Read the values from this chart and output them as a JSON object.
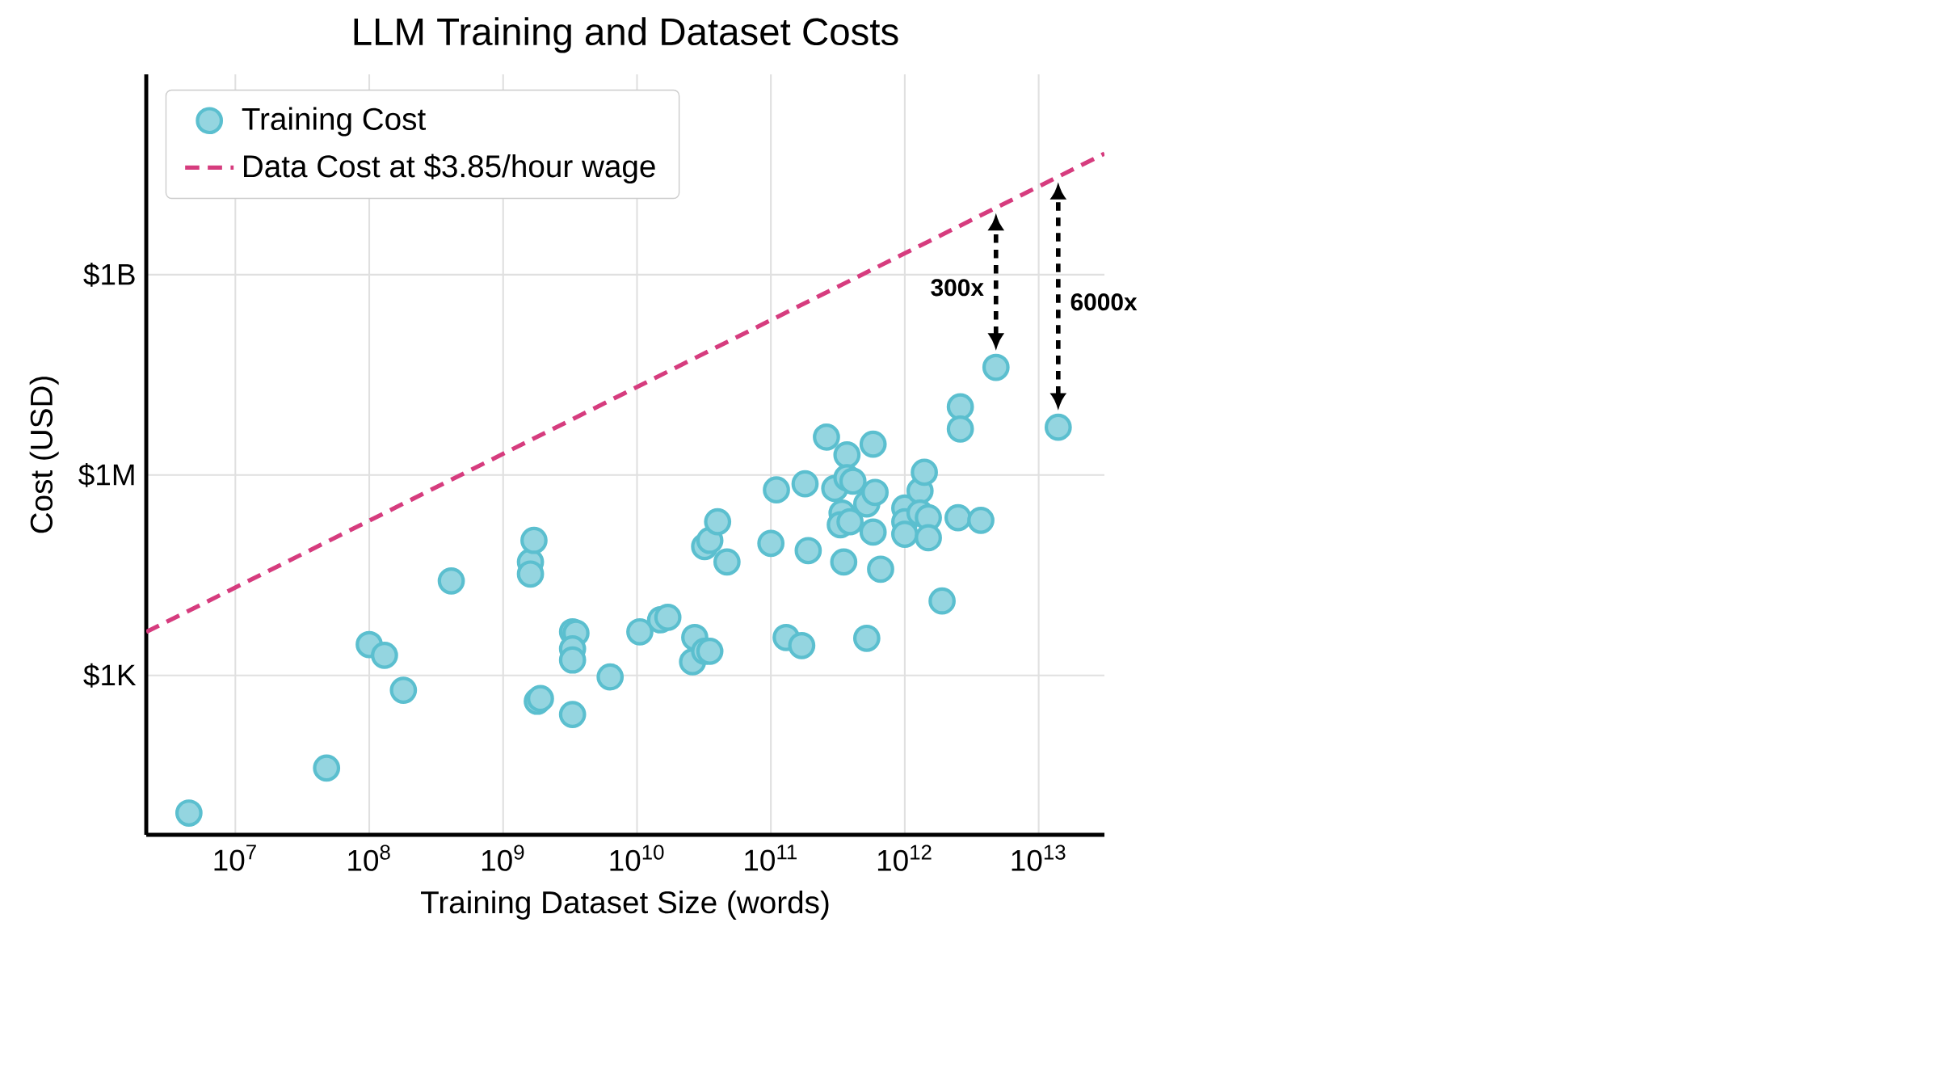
{
  "chart_data": {
    "type": "scatter",
    "title": "LLM Training and Dataset Costs",
    "xlabel": "Training Dataset Size (words)",
    "ylabel": "Cost (USD)",
    "log": "xy",
    "grid": true,
    "legend": "top left",
    "xlim": [
      2160000.0,
      31000000000000.0
    ],
    "ylim": [
      4.1,
      1000000000000.0
    ],
    "xticks": [
      {
        "value": 10000000.0,
        "label": "10$^{7}$"
      },
      {
        "value": 100000000.0,
        "label": "10$^{8}$"
      },
      {
        "value": 1000000000.0,
        "label": "10$^{9}$"
      },
      {
        "value": 10000000000.0,
        "label": "10$^{10}$"
      },
      {
        "value": 100000000000.0,
        "label": "10$^{11}$"
      },
      {
        "value": 1000000000000.0,
        "label": "10$^{12}$"
      },
      {
        "value": 10000000000000.0,
        "label": "10$^{13}$"
      }
    ],
    "yticks": [
      {
        "value": 1000.0,
        "label": "$1K"
      },
      {
        "value": 1000000.0,
        "label": "$1M"
      },
      {
        "value": 1000000000.0,
        "label": "$1B"
      }
    ],
    "series": [
      {
        "name": "Training Cost",
        "color": "#5bbfcf",
        "marker": "circle",
        "x": [
          4500000.0,
          48000000.0,
          100000000.0,
          130000000.0,
          180000000.0,
          410000000.0,
          1600000000.0,
          1600000000.0,
          1700000000.0,
          1800000000.0,
          1900000000.0,
          3300000000.0,
          3500000000.0,
          3300000000.0,
          3300000000.0,
          3300000000.0,
          6300000000.0,
          10500000000.0,
          15000000000.0,
          17000000000.0,
          27000000000.0,
          26000000000.0,
          32000000000.0,
          35000000000.0,
          32000000000.0,
          35000000000.0,
          40000000000.0,
          47000000000.0,
          100000000000.0,
          110000000000.0,
          130000000000.0,
          170000000000.0,
          180000000000.0,
          190000000000.0,
          260000000000.0,
          300000000000.0,
          340000000000.0,
          330000000000.0,
          370000000000.0,
          370000000000.0,
          410000000000.0,
          390000000000.0,
          350000000000.0,
          520000000000.0,
          580000000000.0,
          600000000000.0,
          580000000000.0,
          520000000000.0,
          660000000000.0,
          1000000000000.0,
          1000000000000.0,
          1000000000000.0,
          1300000000000.0,
          1300000000000.0,
          1400000000000.0,
          1500000000000.0,
          1500000000000.0,
          1900000000000.0,
          2500000000000.0,
          2600000000000.0,
          2600000000000.0,
          3700000000000.0,
          4800000000000.0,
          14000000000000.0
        ],
        "values": [
          8.7,
          41,
          2900,
          2000,
          600,
          26000,
          50000,
          33000,
          105000,
          410,
          450,
          4500,
          4300,
          2500,
          1700,
          260,
          950,
          4500,
          6800,
          7400,
          3700,
          1600,
          2300,
          2300,
          85000,
          105000,
          200000,
          50000,
          95000,
          600000,
          3700,
          2800,
          740000,
          74000,
          3700000.0,
          630000,
          270000,
          180000,
          2000000.0,
          910000,
          810000,
          200000,
          50000,
          370000,
          2900000.0,
          550000,
          140000,
          3600,
          39000,
          320000,
          200000,
          130000,
          580000,
          270000,
          1100000.0,
          230000,
          115000,
          13000,
          230000,
          10500000.0,
          4900000.0,
          210000,
          41000000.0,
          5200000.0
        ]
      },
      {
        "name": "Data Cost at $3.85/hour wage",
        "type": "line",
        "color": "#d63c7e",
        "line_style": "dashed",
        "marker": "none",
        "x": [
          2160000.0,
          31000000000000.0
        ],
        "values": [
          4470,
          65000000000.0
        ]
      }
    ],
    "annotations": [
      "300x",
      "6000x"
    ]
  }
}
